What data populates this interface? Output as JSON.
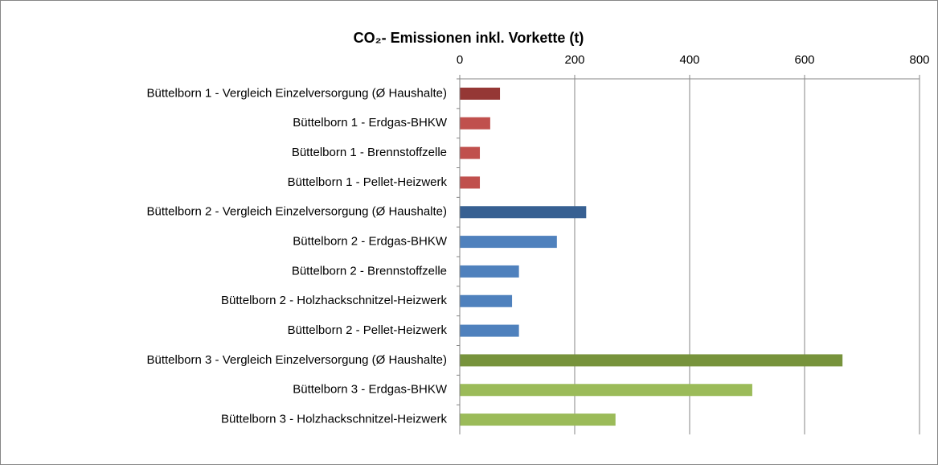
{
  "chart_data": {
    "type": "hbar",
    "title": "CO₂- Emissionen inkl. Vorkette (t)",
    "categories": [
      "Büttelborn 1 - Vergleich Einzelversorgung (Ø Haushalte)",
      "Büttelborn 1 - Erdgas-BHKW",
      "Büttelborn 1 - Brennstoffzelle",
      "Büttelborn 1 -  Pellet-Heizwerk",
      "Büttelborn 2 - Vergleich Einzelversorgung (Ø Haushalte)",
      "Büttelborn 2 - Erdgas-BHKW",
      "Büttelborn 2 - Brennstoffzelle",
      "Büttelborn 2 - Holzhackschnitzel-Heizwerk",
      "Büttelborn 2 - Pellet-Heizwerk",
      "Büttelborn 3 - Vergleich Einzelversorgung (Ø Haushalte)",
      "Büttelborn 3 - Erdgas-BHKW",
      "Büttelborn 3 - Holzhackschnitzel-Heizwerk"
    ],
    "values": [
      70,
      53,
      35,
      35,
      220,
      169,
      103,
      91,
      103,
      666,
      509,
      271
    ],
    "colors": [
      "#953735",
      "#c0504d",
      "#c0504d",
      "#c0504d",
      "#376092",
      "#4f81bd",
      "#4f81bd",
      "#4f81bd",
      "#4f81bd",
      "#77933c",
      "#9bbb59",
      "#9bbb59"
    ],
    "xlim": [
      0,
      800
    ],
    "xticks": [
      0,
      200,
      400,
      600,
      800
    ],
    "grid": true
  }
}
